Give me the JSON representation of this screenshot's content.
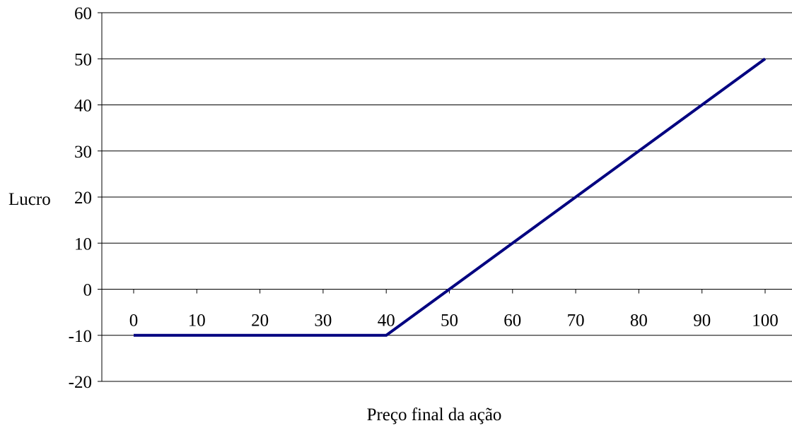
{
  "chart_data": {
    "type": "line",
    "title": "",
    "xlabel": "Preço final da ação",
    "ylabel": "Lucro",
    "x": [
      0,
      10,
      20,
      30,
      40,
      50,
      60,
      70,
      80,
      90,
      100
    ],
    "x_tick_labels": [
      "0",
      "10",
      "20",
      "30",
      "40",
      "50",
      "60",
      "70",
      "80",
      "90",
      "100"
    ],
    "ylim": [
      -20,
      60
    ],
    "y_ticks": [
      -20,
      -10,
      0,
      10,
      20,
      30,
      40,
      50,
      60
    ],
    "y_tick_labels": [
      "-20",
      "-10",
      "0",
      "10",
      "20",
      "30",
      "40",
      "50",
      "60"
    ],
    "grid": "horizontal",
    "legend": "none",
    "series": [
      {
        "color": "#000080",
        "values": [
          -10,
          -10,
          -10,
          -10,
          -10,
          0,
          10,
          20,
          30,
          40,
          50
        ]
      }
    ]
  }
}
